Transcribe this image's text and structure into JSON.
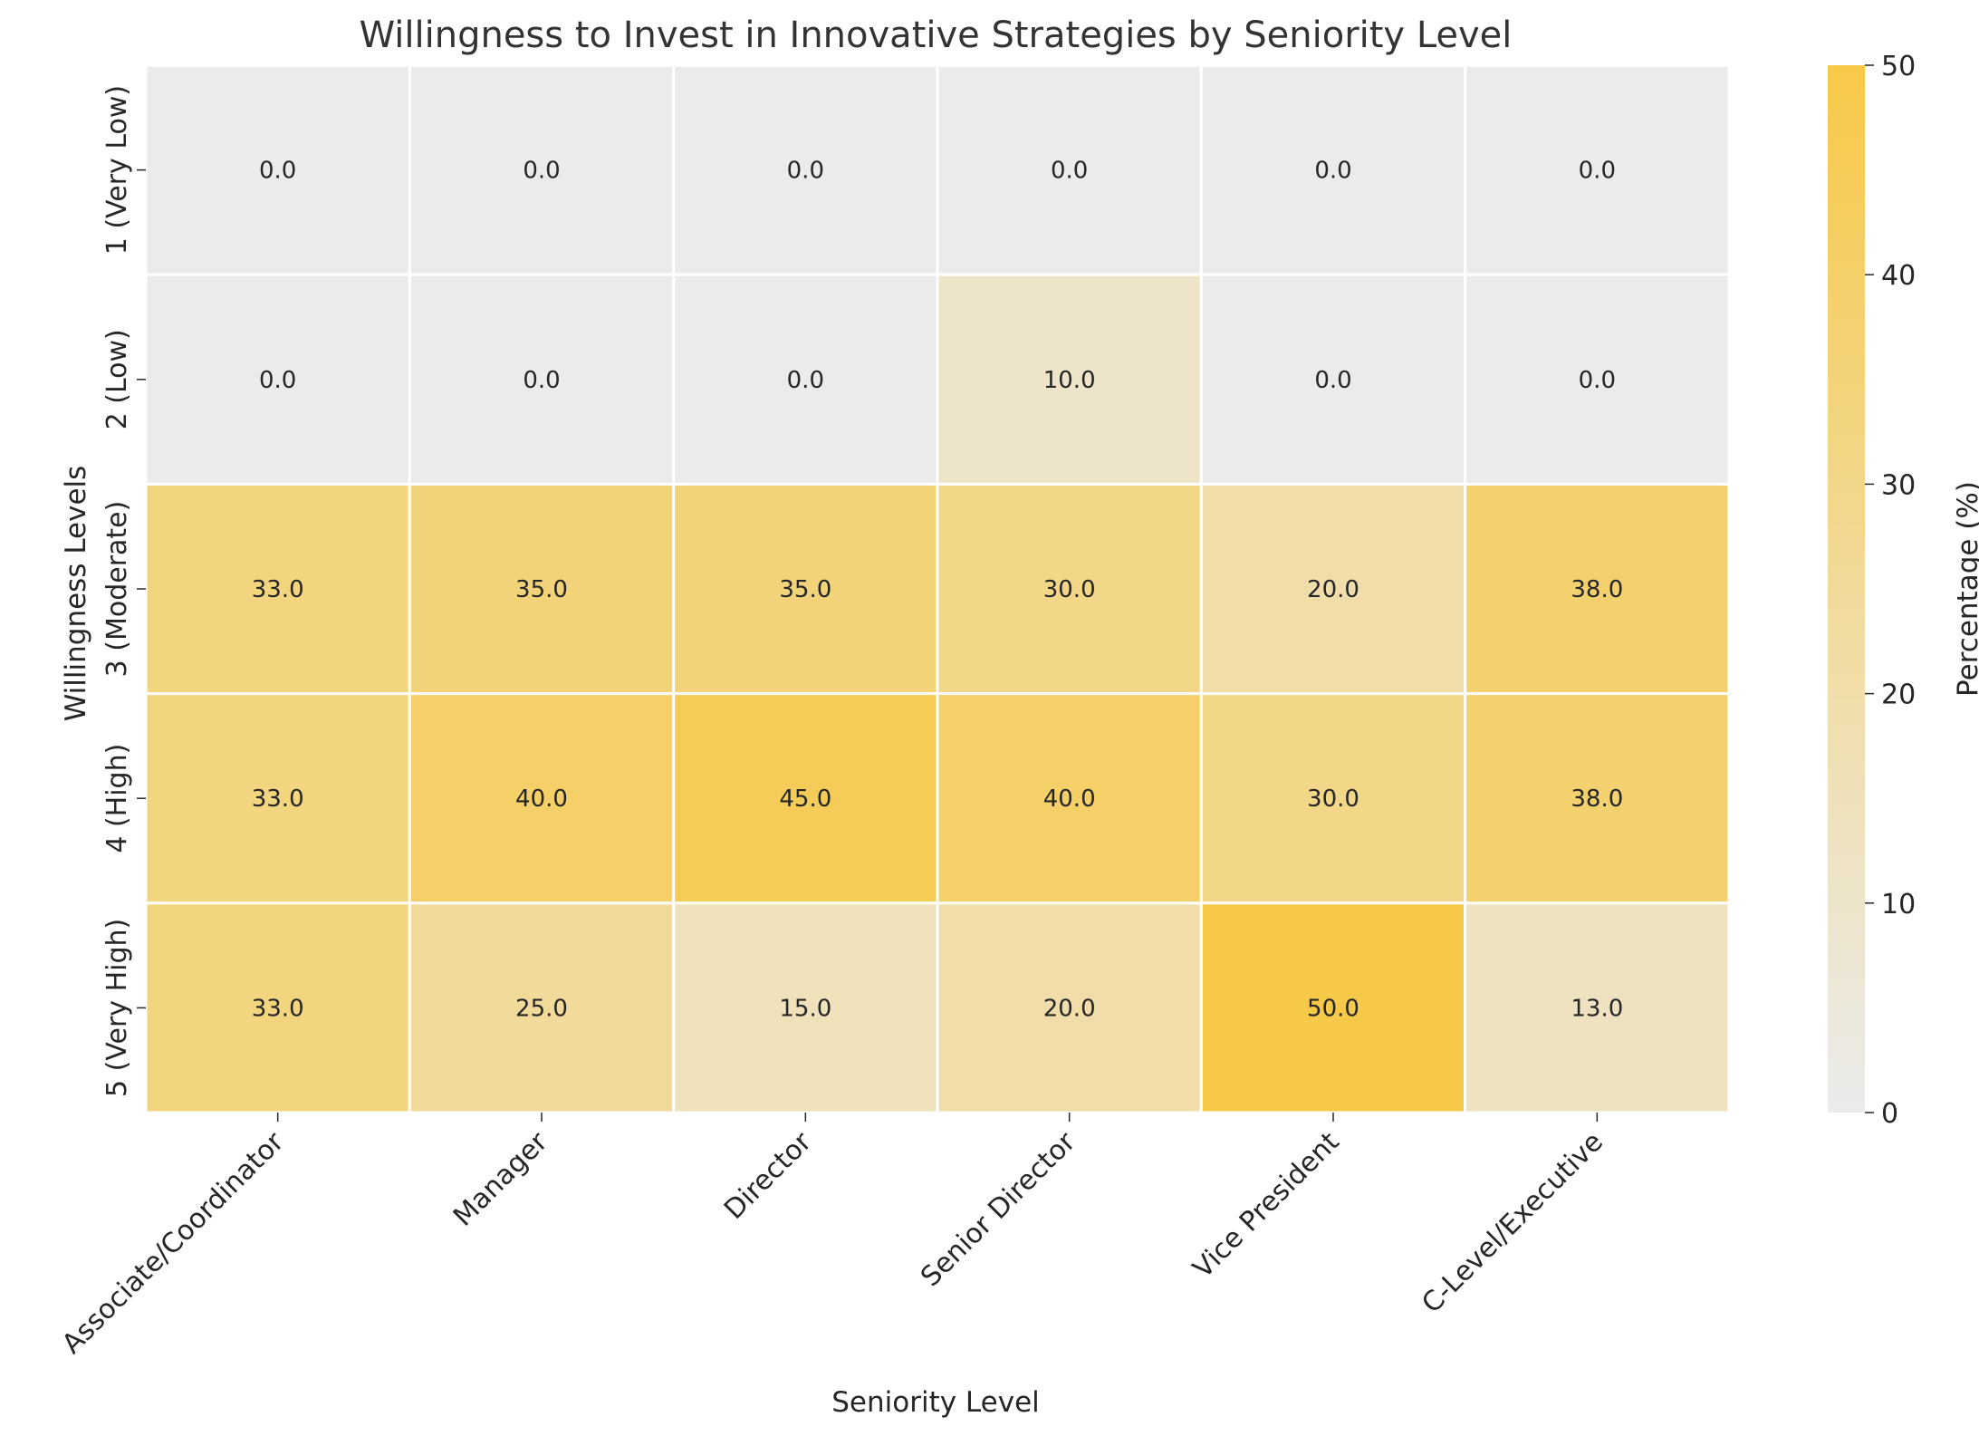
{
  "chart_data": {
    "type": "heatmap",
    "title": "Willingness to Invest in Innovative Strategies by Seniority Level",
    "xlabel": "Seniority Level",
    "ylabel": "Willingness Levels",
    "x_categories": [
      "Associate/Coordinator",
      "Manager",
      "Director",
      "Senior Director",
      "Vice President",
      "C-Level/Executive"
    ],
    "y_categories": [
      "1 (Very Low)",
      "2 (Low)",
      "3 (Moderate)",
      "4 (High)",
      "5 (Very High)"
    ],
    "values": [
      [
        0.0,
        0.0,
        0.0,
        0.0,
        0.0,
        0.0
      ],
      [
        0.0,
        0.0,
        0.0,
        10.0,
        0.0,
        0.0
      ],
      [
        33.0,
        35.0,
        35.0,
        30.0,
        20.0,
        38.0
      ],
      [
        33.0,
        40.0,
        45.0,
        40.0,
        30.0,
        38.0
      ],
      [
        33.0,
        25.0,
        15.0,
        20.0,
        50.0,
        13.0
      ]
    ],
    "value_format": "0.0",
    "colorbar": {
      "label": "Percentage (%)",
      "range": [
        0,
        50
      ],
      "ticks": [
        0,
        10,
        20,
        30,
        40,
        50
      ],
      "colors": [
        "#ebebeb",
        "#f7c948"
      ]
    }
  }
}
